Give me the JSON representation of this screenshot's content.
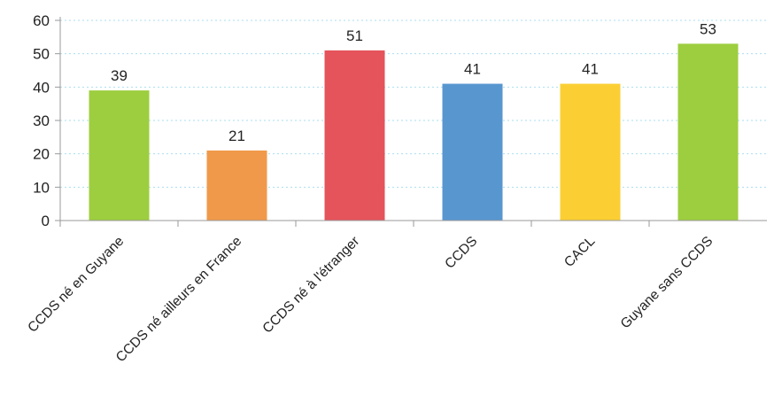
{
  "chart_data": {
    "type": "bar",
    "categories": [
      "CCDS né en Guyane",
      "CCDS né ailleurs en France",
      "CCDS né à l'étranger",
      "CCDS",
      "CACL",
      "Guyane sans CCDS"
    ],
    "values": [
      39,
      21,
      51,
      41,
      41,
      53
    ],
    "data_labels": [
      "39",
      "21",
      "51",
      "41",
      "41",
      "53"
    ],
    "bar_colors": [
      "#9dce3f",
      "#f0994a",
      "#e5535b",
      "#5896cf",
      "#fbcf34",
      "#9dce3f"
    ],
    "title": "",
    "xlabel": "",
    "ylabel": "",
    "ylim": [
      0,
      60
    ],
    "yticks": [
      0,
      10,
      20,
      30,
      40,
      50,
      60
    ],
    "ytick_labels": [
      "0",
      "10",
      "20",
      "30",
      "40",
      "50",
      "60"
    ],
    "grid": true,
    "grid_style": "dotted",
    "grid_color": "#a9dff0",
    "legend": "none"
  }
}
